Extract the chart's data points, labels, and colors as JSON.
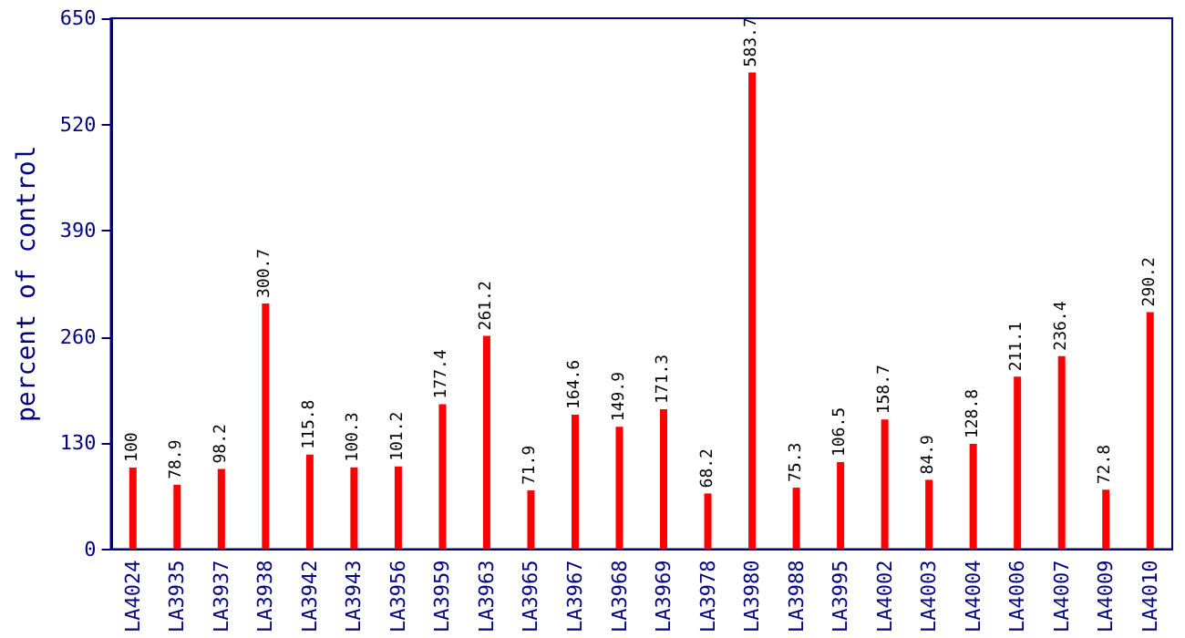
{
  "chart_data": {
    "type": "bar",
    "ylabel": "percent of control",
    "categories": [
      "LA4024",
      "LA3935",
      "LA3937",
      "LA3938",
      "LA3942",
      "LA3943",
      "LA3956",
      "LA3959",
      "LA3963",
      "LA3965",
      "LA3967",
      "LA3968",
      "LA3969",
      "LA3978",
      "LA3980",
      "LA3988",
      "LA3995",
      "LA4002",
      "LA4003",
      "LA4004",
      "LA4006",
      "LA4007",
      "LA4009",
      "LA4010"
    ],
    "values": [
      100,
      78.9,
      98.2,
      300.7,
      115.8,
      100.3,
      101.2,
      177.4,
      261.2,
      71.9,
      164.6,
      149.9,
      171.3,
      68.2,
      583.7,
      75.3,
      106.5,
      158.7,
      84.9,
      128.8,
      211.1,
      236.4,
      72.8,
      290.2
    ],
    "color": "#ff0000",
    "ylim": [
      0,
      650
    ],
    "yticks": [
      0,
      130,
      260,
      390,
      520,
      650
    ],
    "grid": false,
    "data_labels": true
  }
}
